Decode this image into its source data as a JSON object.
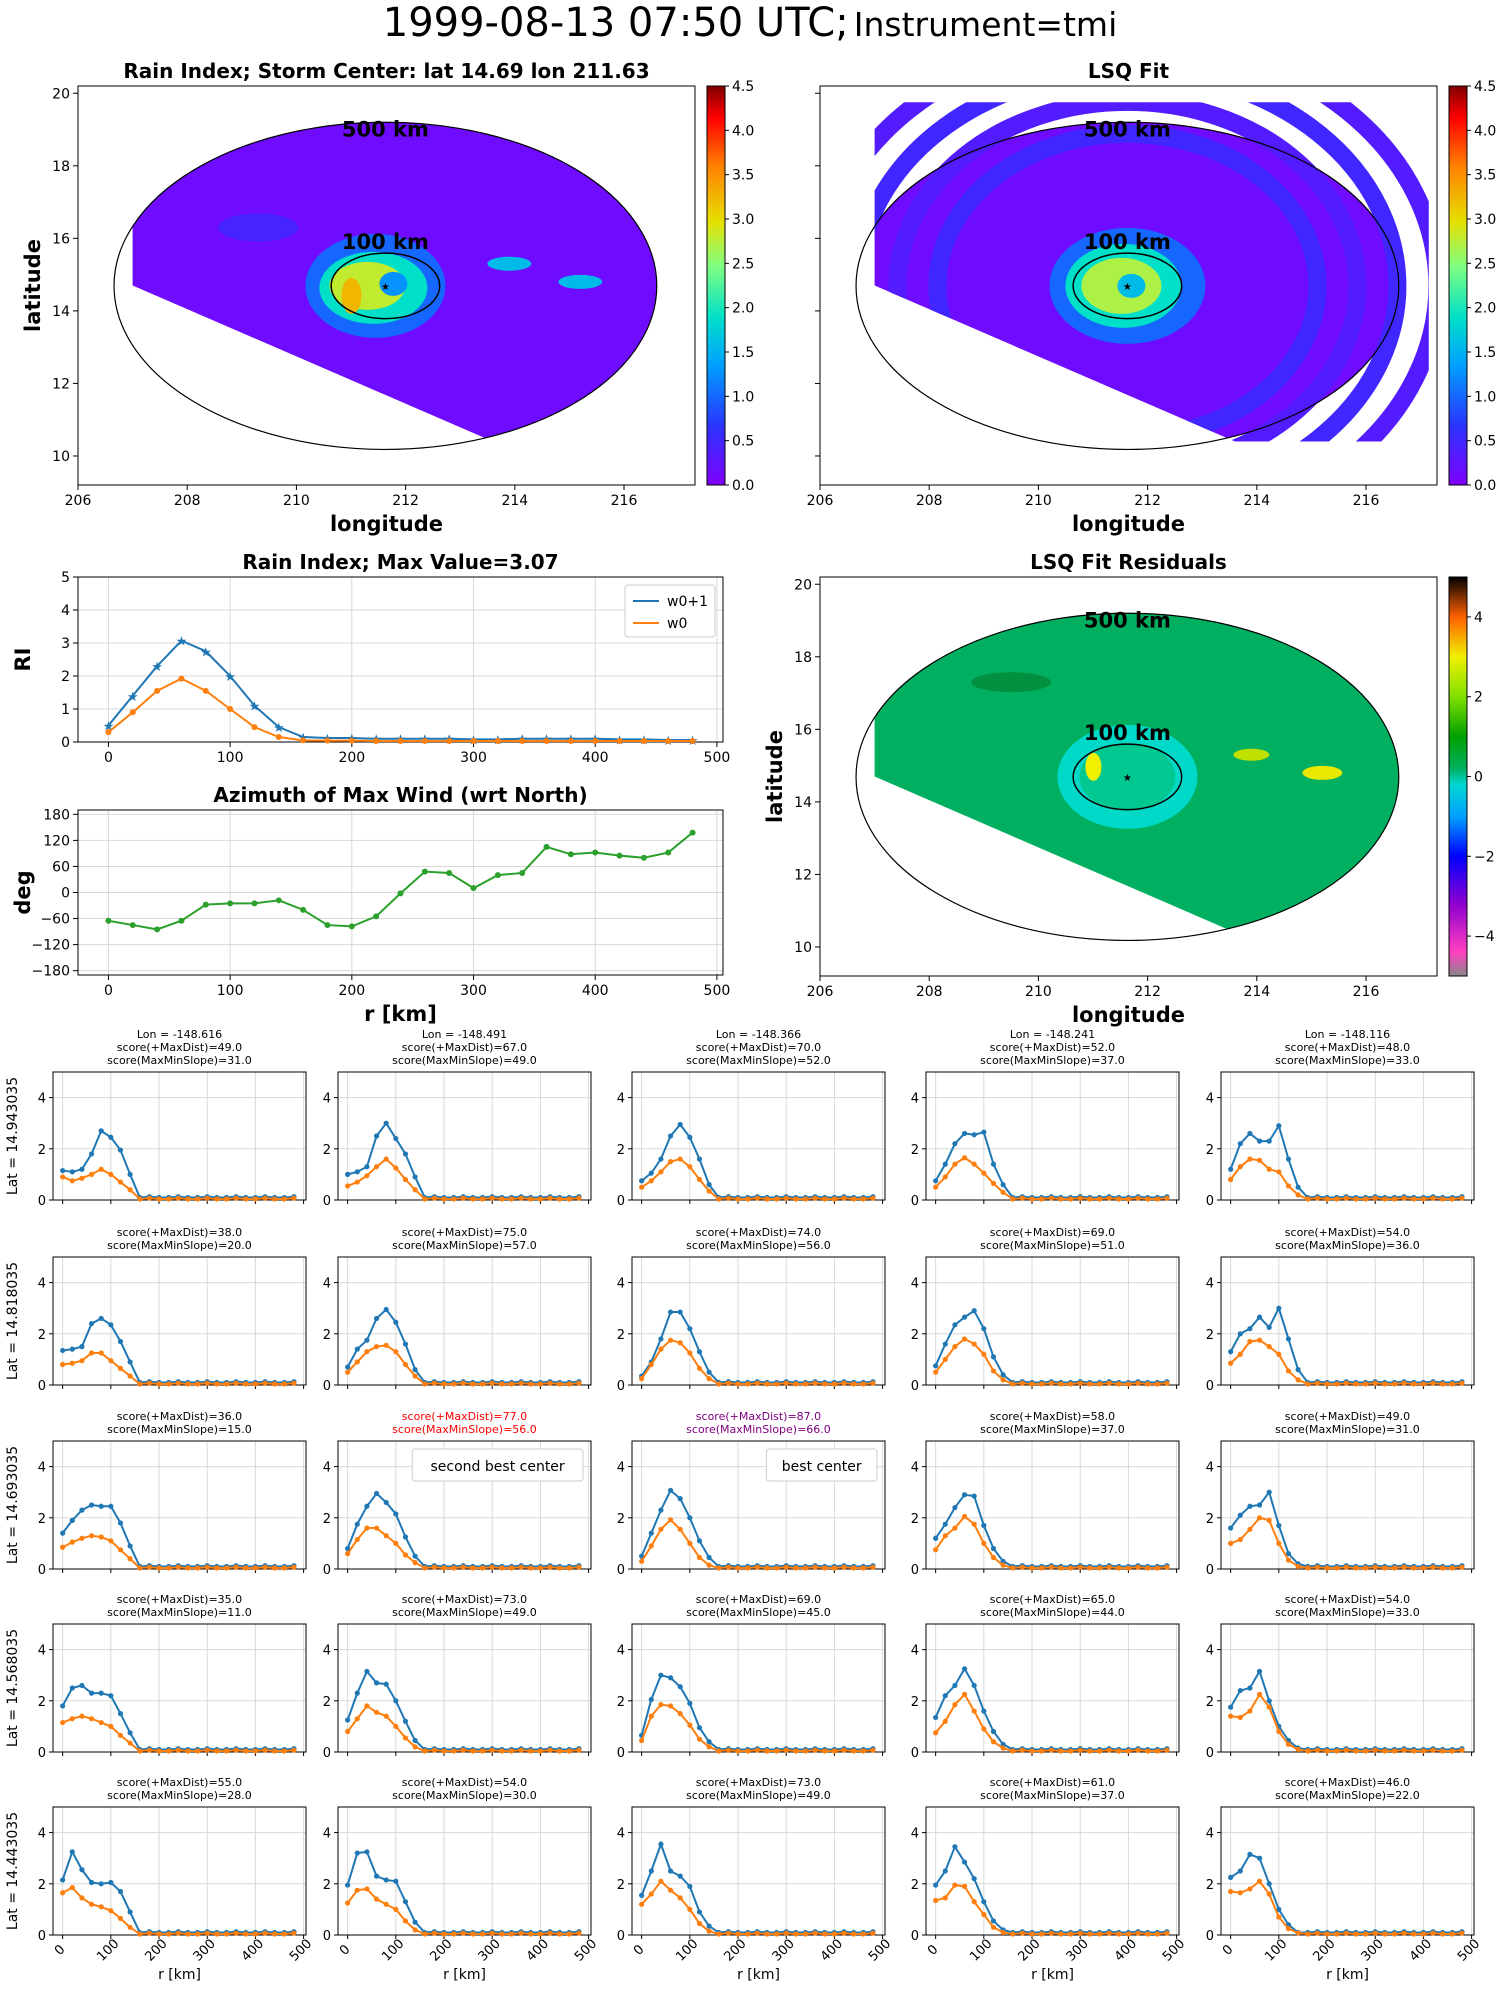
{
  "suptitle": {
    "main": "1999-08-13 07:50 UTC;",
    "sub": "Instrument=tmi"
  },
  "chart_data": [
    {
      "type": "heatmap",
      "id": "rain_index_map",
      "title": "Rain Index; Storm Center: lat 14.69 lon 211.63",
      "xlabel": "longitude",
      "ylabel": "latitude",
      "xlim": [
        206,
        217.3
      ],
      "ylim": [
        9.2,
        20.2
      ],
      "xticks": [
        206,
        208,
        210,
        212,
        214,
        216
      ],
      "yticks": [
        10,
        12,
        14,
        16,
        18,
        20
      ],
      "storm_center": {
        "lon": 211.63,
        "lat": 14.69
      },
      "rings": [
        {
          "label": "500 km",
          "radius_km": 500
        },
        {
          "label": "100 km",
          "radius_km": 100
        }
      ],
      "colorbar": {
        "min": 0,
        "max": 4.5,
        "ticks": [
          0.0,
          0.5,
          1.0,
          1.5,
          2.0,
          2.5,
          3.0,
          3.5,
          4.0,
          4.5
        ],
        "colormap": "rainbow"
      },
      "background_value": 0.05,
      "features": [
        {
          "kind": "eyewall_max",
          "lon": 210.9,
          "lat": 14.6,
          "value": 3.0
        },
        {
          "kind": "rainband",
          "lon": 213.9,
          "lat": 15.3,
          "value": 1.4
        },
        {
          "kind": "rainband",
          "lon": 215.2,
          "lat": 14.8,
          "value": 1.4
        }
      ]
    },
    {
      "type": "heatmap",
      "id": "lsq_fit_map",
      "title": "LSQ Fit",
      "xlabel": "longitude",
      "ylabel": "",
      "xlim": [
        206,
        217.3
      ],
      "ylim": [
        9.2,
        20.2
      ],
      "xticks": [
        206,
        208,
        210,
        212,
        214,
        216
      ],
      "rings": [
        {
          "label": "500 km",
          "radius_km": 500
        },
        {
          "label": "100 km",
          "radius_km": 100
        }
      ],
      "colorbar": {
        "min": 0,
        "max": 4.5,
        "ticks": [
          0.0,
          0.5,
          1.0,
          1.5,
          2.0,
          2.5,
          3.0,
          3.5,
          4.0,
          4.5
        ],
        "colormap": "rainbow"
      },
      "center_value": 2.2
    },
    {
      "type": "line",
      "id": "rain_index_profile",
      "title": "Rain Index; Max Value=3.07",
      "xlabel": "",
      "ylabel": "RI",
      "xlim": [
        -25,
        505
      ],
      "ylim": [
        0,
        5
      ],
      "xticks": [
        0,
        100,
        200,
        300,
        400,
        500
      ],
      "yticks": [
        0,
        1,
        2,
        3,
        4,
        5
      ],
      "grid": true,
      "legend": "top-right",
      "x": [
        0,
        20,
        40,
        60,
        80,
        100,
        120,
        140,
        160,
        180,
        200,
        220,
        240,
        260,
        280,
        300,
        320,
        340,
        360,
        380,
        400,
        420,
        440,
        460,
        480
      ],
      "series": [
        {
          "name": "w0+1",
          "color": "#1f77b4",
          "marker": "star",
          "values": [
            0.5,
            1.4,
            2.3,
            3.07,
            2.75,
            2.0,
            1.1,
            0.45,
            0.15,
            0.12,
            0.12,
            0.1,
            0.1,
            0.1,
            0.1,
            0.08,
            0.08,
            0.1,
            0.1,
            0.1,
            0.1,
            0.08,
            0.08,
            0.06,
            0.06
          ]
        },
        {
          "name": "w0",
          "color": "#ff7f0e",
          "marker": "dot",
          "values": [
            0.3,
            0.9,
            1.55,
            1.92,
            1.55,
            1.0,
            0.45,
            0.15,
            0.05,
            0.04,
            0.04,
            0.03,
            0.03,
            0.03,
            0.03,
            0.03,
            0.03,
            0.03,
            0.03,
            0.03,
            0.03,
            0.03,
            0.03,
            0.03,
            0.03
          ]
        }
      ]
    },
    {
      "type": "heatmap",
      "id": "lsq_residuals_map",
      "title": "LSQ Fit Residuals",
      "xlabel": "longitude",
      "ylabel": "latitude",
      "xlim": [
        206,
        217.3
      ],
      "ylim": [
        9.2,
        20.2
      ],
      "xticks": [
        206,
        208,
        210,
        212,
        214,
        216
      ],
      "yticks": [
        10,
        12,
        14,
        16,
        18,
        20
      ],
      "rings": [
        {
          "label": "500 km",
          "radius_km": 500
        },
        {
          "label": "100 km",
          "radius_km": 100
        }
      ],
      "colorbar": {
        "min": -5,
        "max": 5,
        "ticks": [
          -4,
          -2,
          0,
          2,
          4
        ],
        "colormap": "nipy_spectral-like"
      }
    },
    {
      "type": "line",
      "id": "azimuth_max_wind",
      "title": "Azimuth of Max Wind (wrt North)",
      "xlabel": "r [km]",
      "ylabel": "deg",
      "xlim": [
        -25,
        505
      ],
      "ylim": [
        -190,
        190
      ],
      "xticks": [
        0,
        100,
        200,
        300,
        400,
        500
      ],
      "yticks": [
        180,
        120,
        60,
        0,
        -60,
        -120,
        -180
      ],
      "grid": true,
      "x": [
        0,
        20,
        40,
        60,
        80,
        100,
        120,
        140,
        160,
        180,
        200,
        220,
        240,
        260,
        280,
        300,
        320,
        340,
        360,
        380,
        400,
        420,
        440,
        460,
        480
      ],
      "series": [
        {
          "color": "#2ca02c",
          "values": [
            -65,
            -75,
            -85,
            -65,
            -28,
            -25,
            -25,
            -18,
            -40,
            -75,
            -78,
            -55,
            -2,
            48,
            45,
            10,
            40,
            45,
            105,
            88,
            92,
            85,
            80,
            92,
            138
          ]
        }
      ]
    },
    {
      "type": "line",
      "id": "candidate_grid",
      "rows": 5,
      "cols": 5,
      "col_headers": [
        "Lon = -148.616",
        "Lon = -148.491",
        "Lon = -148.366",
        "Lon = -148.241",
        "Lon = -148.116"
      ],
      "row_labels": [
        "Lat = 14.943035",
        "Lat = 14.818035",
        "Lat = 14.693035",
        "Lat = 14.568035",
        "Lat = 14.443035"
      ],
      "xlabel": "r [km]",
      "xlim": [
        -20,
        505
      ],
      "ylim": [
        0,
        5
      ],
      "xticks": [
        0,
        100,
        200,
        300,
        400,
        500
      ],
      "yticks": [
        0,
        2,
        4
      ],
      "x": [
        0,
        20,
        40,
        60,
        80,
        100,
        120,
        140,
        160,
        180,
        200,
        220,
        240,
        260,
        280,
        300,
        320,
        340,
        360,
        380,
        400,
        420,
        440,
        460,
        480
      ],
      "panels": [
        {
          "maxdist": "score(+MaxDist)=49.0",
          "maxmin": "score(MaxMinSlope)=31.0",
          "peaks1": [
            1.15,
            1.1,
            1.2,
            1.8,
            2.7,
            2.45,
            1.95,
            1.0
          ],
          "peaks0": [
            0.9,
            0.75,
            0.85,
            1.0,
            1.2,
            1.0,
            0.7,
            0.4
          ]
        },
        {
          "maxdist": "score(+MaxDist)=67.0",
          "maxmin": "score(MaxMinSlope)=49.0",
          "peaks1": [
            1.0,
            1.1,
            1.3,
            2.5,
            3.0,
            2.4,
            1.8,
            0.9
          ],
          "peaks0": [
            0.55,
            0.7,
            0.95,
            1.3,
            1.6,
            1.25,
            0.8,
            0.4
          ]
        },
        {
          "maxdist": "score(+MaxDist)=70.0",
          "maxmin": "score(MaxMinSlope)=52.0",
          "peaks1": [
            0.75,
            1.05,
            1.6,
            2.5,
            2.95,
            2.45,
            1.6,
            0.6
          ],
          "peaks0": [
            0.5,
            0.75,
            1.1,
            1.5,
            1.6,
            1.3,
            0.8,
            0.35
          ]
        },
        {
          "maxdist": "score(+MaxDist)=52.0",
          "maxmin": "score(MaxMinSlope)=37.0",
          "peaks1": [
            0.75,
            1.4,
            2.2,
            2.6,
            2.55,
            2.65,
            1.4,
            0.6
          ],
          "peaks0": [
            0.5,
            0.9,
            1.4,
            1.65,
            1.4,
            1.05,
            0.65,
            0.3
          ]
        },
        {
          "maxdist": "score(+MaxDist)=48.0",
          "maxmin": "score(MaxMinSlope)=33.0",
          "peaks1": [
            1.2,
            2.2,
            2.6,
            2.3,
            2.3,
            2.9,
            1.6,
            0.5
          ],
          "peaks0": [
            0.8,
            1.3,
            1.6,
            1.55,
            1.2,
            1.1,
            0.55,
            0.2
          ]
        },
        {
          "maxdist": "score(+MaxDist)=38.0",
          "maxmin": "score(MaxMinSlope)=20.0",
          "peaks1": [
            1.35,
            1.4,
            1.5,
            2.4,
            2.6,
            2.35,
            1.7,
            0.9
          ],
          "peaks0": [
            0.8,
            0.85,
            0.95,
            1.25,
            1.25,
            0.95,
            0.65,
            0.35
          ]
        },
        {
          "maxdist": "score(+MaxDist)=75.0",
          "maxmin": "score(MaxMinSlope)=57.0",
          "peaks1": [
            0.7,
            1.4,
            1.75,
            2.6,
            2.95,
            2.45,
            1.6,
            0.6
          ],
          "peaks0": [
            0.5,
            0.9,
            1.3,
            1.5,
            1.55,
            1.3,
            0.8,
            0.35
          ]
        },
        {
          "maxdist": "score(+MaxDist)=74.0",
          "maxmin": "score(MaxMinSlope)=56.0",
          "peaks1": [
            0.35,
            0.9,
            1.8,
            2.85,
            2.85,
            2.2,
            1.3,
            0.5
          ],
          "peaks0": [
            0.25,
            0.8,
            1.4,
            1.75,
            1.65,
            1.25,
            0.65,
            0.25
          ]
        },
        {
          "maxdist": "score(+MaxDist)=69.0",
          "maxmin": "score(MaxMinSlope)=51.0",
          "peaks1": [
            0.75,
            1.6,
            2.35,
            2.65,
            2.9,
            2.2,
            1.1,
            0.4
          ],
          "peaks0": [
            0.5,
            1.0,
            1.5,
            1.8,
            1.6,
            1.2,
            0.55,
            0.2
          ]
        },
        {
          "maxdist": "score(+MaxDist)=54.0",
          "maxmin": "score(MaxMinSlope)=36.0",
          "peaks1": [
            1.3,
            2.0,
            2.2,
            2.65,
            2.25,
            3.0,
            1.8,
            0.6
          ],
          "peaks0": [
            0.85,
            1.2,
            1.7,
            1.75,
            1.5,
            1.2,
            0.55,
            0.2
          ]
        },
        {
          "maxdist": "score(+MaxDist)=36.0",
          "maxmin": "score(MaxMinSlope)=15.0",
          "peaks1": [
            1.4,
            1.9,
            2.3,
            2.5,
            2.45,
            2.45,
            1.8,
            0.9
          ],
          "peaks0": [
            0.85,
            1.05,
            1.2,
            1.3,
            1.25,
            1.1,
            0.75,
            0.4
          ]
        },
        {
          "maxdist": "score(+MaxDist)=77.0",
          "maxmin": "score(MaxMinSlope)=56.0",
          "maxdist_color": "#ff0000",
          "maxmin_color": "#ff0000",
          "label": "second best center",
          "peaks1": [
            0.8,
            1.75,
            2.45,
            2.95,
            2.6,
            2.15,
            1.25,
            0.5
          ],
          "peaks0": [
            0.6,
            1.15,
            1.6,
            1.6,
            1.3,
            1.0,
            0.55,
            0.25
          ]
        },
        {
          "maxdist": "score(+MaxDist)=87.0",
          "maxmin": "score(MaxMinSlope)=66.0",
          "maxdist_color": "#800080",
          "maxmin_color": "#800080",
          "label": "best center",
          "peaks1": [
            0.5,
            1.4,
            2.3,
            3.07,
            2.75,
            2.0,
            1.1,
            0.45
          ],
          "peaks0": [
            0.3,
            0.9,
            1.55,
            1.92,
            1.55,
            1.0,
            0.45,
            0.15
          ]
        },
        {
          "maxdist": "score(+MaxDist)=58.0",
          "maxmin": "score(MaxMinSlope)=37.0",
          "peaks1": [
            1.2,
            1.75,
            2.4,
            2.9,
            2.85,
            1.7,
            0.8,
            0.3
          ],
          "peaks0": [
            0.75,
            1.3,
            1.6,
            2.05,
            1.75,
            1.0,
            0.45,
            0.15
          ]
        },
        {
          "maxdist": "score(+MaxDist)=49.0",
          "maxmin": "score(MaxMinSlope)=31.0",
          "peaks1": [
            1.6,
            2.1,
            2.45,
            2.5,
            3.0,
            1.7,
            0.6,
            0.2
          ],
          "peaks0": [
            1.0,
            1.15,
            1.55,
            2.0,
            1.9,
            1.0,
            0.35,
            0.1
          ]
        },
        {
          "maxdist": "score(+MaxDist)=35.0",
          "maxmin": "score(MaxMinSlope)=11.0",
          "peaks1": [
            1.8,
            2.5,
            2.6,
            2.3,
            2.3,
            2.2,
            1.5,
            0.75
          ],
          "peaks0": [
            1.15,
            1.3,
            1.4,
            1.3,
            1.15,
            1.0,
            0.65,
            0.35
          ]
        },
        {
          "maxdist": "score(+MaxDist)=73.0",
          "maxmin": "score(MaxMinSlope)=49.0",
          "peaks1": [
            1.25,
            2.3,
            3.15,
            2.7,
            2.65,
            2.0,
            1.2,
            0.45
          ],
          "peaks0": [
            0.8,
            1.3,
            1.8,
            1.55,
            1.4,
            1.0,
            0.55,
            0.2
          ]
        },
        {
          "maxdist": "score(+MaxDist)=69.0",
          "maxmin": "score(MaxMinSlope)=45.0",
          "peaks1": [
            0.65,
            2.05,
            3.0,
            2.9,
            2.55,
            1.9,
            0.95,
            0.4
          ],
          "peaks0": [
            0.45,
            1.4,
            1.85,
            1.8,
            1.5,
            1.05,
            0.5,
            0.2
          ]
        },
        {
          "maxdist": "score(+MaxDist)=65.0",
          "maxmin": "score(MaxMinSlope)=44.0",
          "peaks1": [
            1.35,
            2.2,
            2.6,
            3.25,
            2.6,
            1.6,
            0.8,
            0.3
          ],
          "peaks0": [
            0.75,
            1.2,
            1.85,
            2.25,
            1.6,
            0.9,
            0.4,
            0.15
          ]
        },
        {
          "maxdist": "score(+MaxDist)=54.0",
          "maxmin": "score(MaxMinSlope)=33.0",
          "peaks1": [
            1.75,
            2.4,
            2.5,
            3.15,
            2.0,
            1.0,
            0.45,
            0.15
          ],
          "peaks0": [
            1.4,
            1.35,
            1.6,
            2.25,
            1.75,
            0.8,
            0.3,
            0.1
          ]
        },
        {
          "maxdist": "score(+MaxDist)=55.0",
          "maxmin": "score(MaxMinSlope)=28.0",
          "peaks1": [
            2.15,
            3.25,
            2.55,
            2.05,
            2.0,
            2.05,
            1.7,
            0.9
          ],
          "peaks0": [
            1.65,
            1.85,
            1.45,
            1.2,
            1.1,
            0.95,
            0.65,
            0.3
          ]
        },
        {
          "maxdist": "score(+MaxDist)=54.0",
          "maxmin": "score(MaxMinSlope)=30.0",
          "peaks1": [
            1.95,
            3.2,
            3.25,
            2.3,
            2.15,
            2.1,
            1.3,
            0.5
          ],
          "peaks0": [
            1.25,
            1.75,
            1.8,
            1.4,
            1.2,
            1.0,
            0.55,
            0.2
          ]
        },
        {
          "maxdist": "score(+MaxDist)=73.0",
          "maxmin": "score(MaxMinSlope)=49.0",
          "peaks1": [
            1.55,
            2.5,
            3.55,
            2.5,
            2.3,
            1.9,
            0.9,
            0.35
          ],
          "peaks0": [
            1.2,
            1.6,
            2.1,
            1.75,
            1.45,
            1.0,
            0.45,
            0.15
          ]
        },
        {
          "maxdist": "score(+MaxDist)=61.0",
          "maxmin": "score(MaxMinSlope)=37.0",
          "peaks1": [
            1.95,
            2.5,
            3.45,
            2.85,
            2.2,
            1.3,
            0.55,
            0.2
          ],
          "peaks0": [
            1.35,
            1.45,
            1.95,
            1.9,
            1.3,
            0.8,
            0.3,
            0.1
          ]
        },
        {
          "maxdist": "score(+MaxDist)=46.0",
          "maxmin": "score(MaxMinSlope)=22.0",
          "peaks1": [
            2.25,
            2.5,
            3.15,
            3.0,
            2.0,
            1.0,
            0.4,
            0.1
          ],
          "peaks0": [
            1.7,
            1.65,
            1.8,
            2.1,
            1.6,
            0.7,
            0.25,
            0.08
          ]
        }
      ]
    }
  ]
}
